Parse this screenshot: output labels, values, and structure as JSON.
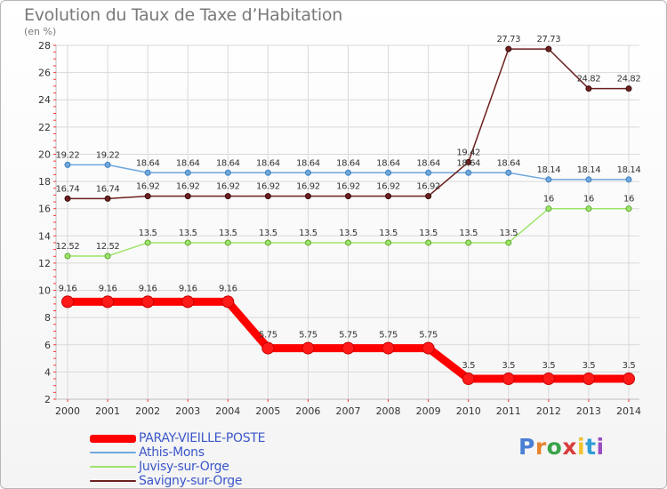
{
  "header": {
    "title": "Evolution du Taux de Taxe d’Habitation",
    "unit": "(en %)"
  },
  "colors": {
    "paray": "#ff0000",
    "athis": "#6fa8dc",
    "juvisy": "#9ee46b",
    "savigny": "#6d1f1f",
    "grid": "#d9d9d9",
    "axis_ticks": "#ff3333"
  },
  "chart_data": {
    "type": "line",
    "title": "Evolution du Taux de Taxe d’Habitation",
    "ylabel": "(en %)",
    "xlabel": "",
    "x": [
      "2000",
      "2001",
      "2002",
      "2003",
      "2004",
      "2005",
      "2006",
      "2007",
      "2008",
      "2009",
      "2010",
      "2011",
      "2012",
      "2013",
      "2014"
    ],
    "ylim": [
      2,
      28
    ],
    "yticks": [
      "2",
      "4",
      "6",
      "8",
      "10",
      "12",
      "14",
      "16",
      "18",
      "20",
      "22",
      "24",
      "26",
      "28"
    ],
    "grid": true,
    "legend_position": "bottom-left",
    "series": [
      {
        "name": "PARAY-VIEILLE-POSTE",
        "values": [
          9.16,
          9.16,
          9.16,
          9.16,
          9.16,
          5.75,
          5.75,
          5.75,
          5.75,
          5.75,
          3.5,
          3.5,
          3.5,
          3.5,
          3.5
        ],
        "labels": [
          "9.16",
          "9.16",
          "9.16",
          "9.16",
          "9.16",
          "5.75",
          "5.75",
          "5.75",
          "5.75",
          "5.75",
          "3.5",
          "3.5",
          "3.5",
          "3.5",
          "3.5"
        ],
        "color": "#ff0000"
      },
      {
        "name": "Athis-Mons",
        "values": [
          19.22,
          19.22,
          18.64,
          18.64,
          18.64,
          18.64,
          18.64,
          18.64,
          18.64,
          18.64,
          18.64,
          18.64,
          18.14,
          18.14,
          18.14
        ],
        "labels": [
          "19.22",
          "19.22",
          "18.64",
          "18.64",
          "18.64",
          "18.64",
          "18.64",
          "18.64",
          "18.64",
          "18.64",
          "18.64",
          "18.64",
          "18.14",
          "18.14",
          "18.14"
        ],
        "color": "#6fa8dc"
      },
      {
        "name": "Juvisy-sur-Orge",
        "values": [
          12.52,
          12.52,
          13.5,
          13.5,
          13.5,
          13.5,
          13.5,
          13.5,
          13.5,
          13.5,
          13.5,
          13.5,
          16,
          16,
          16
        ],
        "labels": [
          "12.52",
          "12.52",
          "13.5",
          "13.5",
          "13.5",
          "13.5",
          "13.5",
          "13.5",
          "13.5",
          "13.5",
          "13.5",
          "13.5",
          "16",
          "16",
          "16"
        ],
        "color": "#9ee46b"
      },
      {
        "name": "Savigny-sur-Orge",
        "values": [
          16.74,
          16.74,
          16.92,
          16.92,
          16.92,
          16.92,
          16.92,
          16.92,
          16.92,
          16.92,
          19.42,
          27.73,
          27.73,
          24.82,
          24.82
        ],
        "labels": [
          "16.74",
          "16.74",
          "16.92",
          "16.92",
          "16.92",
          "16.92",
          "16.92",
          "16.92",
          "16.92",
          "16.92",
          "19.42",
          "27.73",
          "27.73",
          "24.82",
          "24.82"
        ],
        "color": "#6d1f1f"
      }
    ]
  },
  "legend": {
    "items": [
      {
        "label": "PARAY-VIEILLE-POSTE",
        "color": "#ff0000"
      },
      {
        "label": "Athis-Mons",
        "color": "#6fa8dc"
      },
      {
        "label": "Juvisy-sur-Orge",
        "color": "#9ee46b"
      },
      {
        "label": "Savigny-sur-Orge",
        "color": "#6d1f1f"
      }
    ]
  },
  "logo": {
    "text": "Proxiti"
  }
}
